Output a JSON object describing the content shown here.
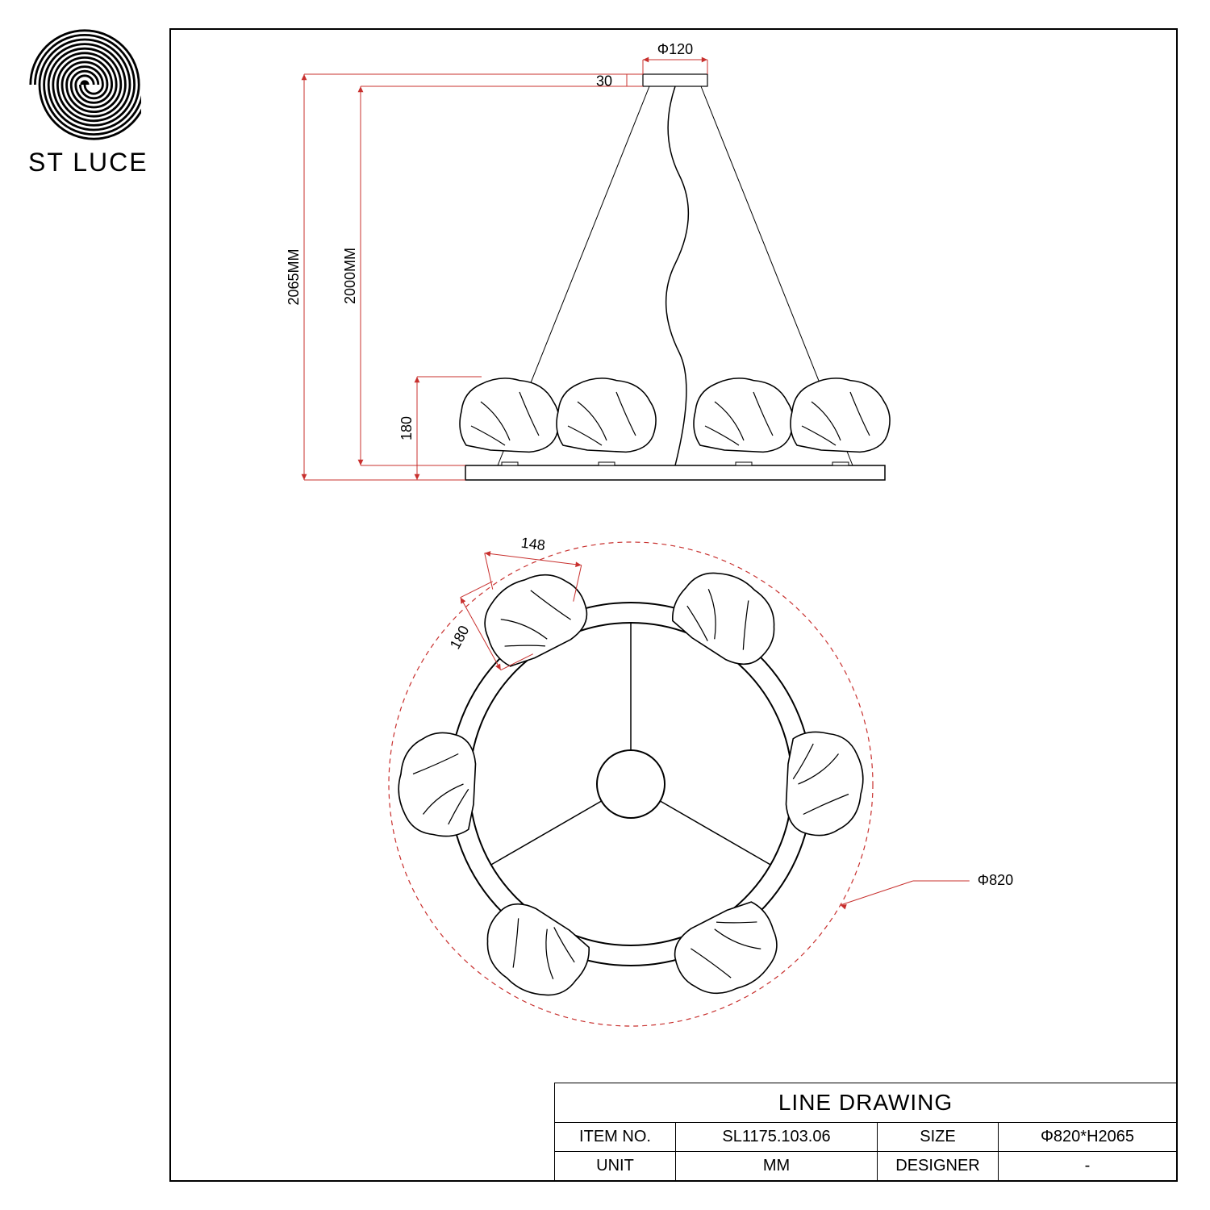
{
  "brand": {
    "name": "ST LUCE"
  },
  "titleBlock": {
    "title": "LINE DRAWING",
    "labels": {
      "itemNo": "ITEM NO.",
      "size": "SIZE",
      "unit": "UNIT",
      "designer": "DESIGNER"
    },
    "values": {
      "itemNo": "SL1175.103.06",
      "size": "Φ820*H2065",
      "unit": "MM",
      "designer": "-"
    }
  },
  "drawing": {
    "dimColor": "#c8302e",
    "lineColor": "#000000",
    "dashColor": "#c8302e",
    "side": {
      "canopyDia": "Φ120",
      "canopyHeight": "30",
      "totalHeight": "2065MM",
      "dropHeight": "2000MM",
      "shadeHeight": "180"
    },
    "plan": {
      "shadeWidth": "148",
      "shadeDepth": "180",
      "overallDia": "Φ820"
    }
  },
  "style": {
    "sheetBorder": "#000000",
    "background": "#ffffff",
    "fontSizeDim": 18,
    "fontSizeTitle": 28,
    "fontSizeTable": 20
  }
}
